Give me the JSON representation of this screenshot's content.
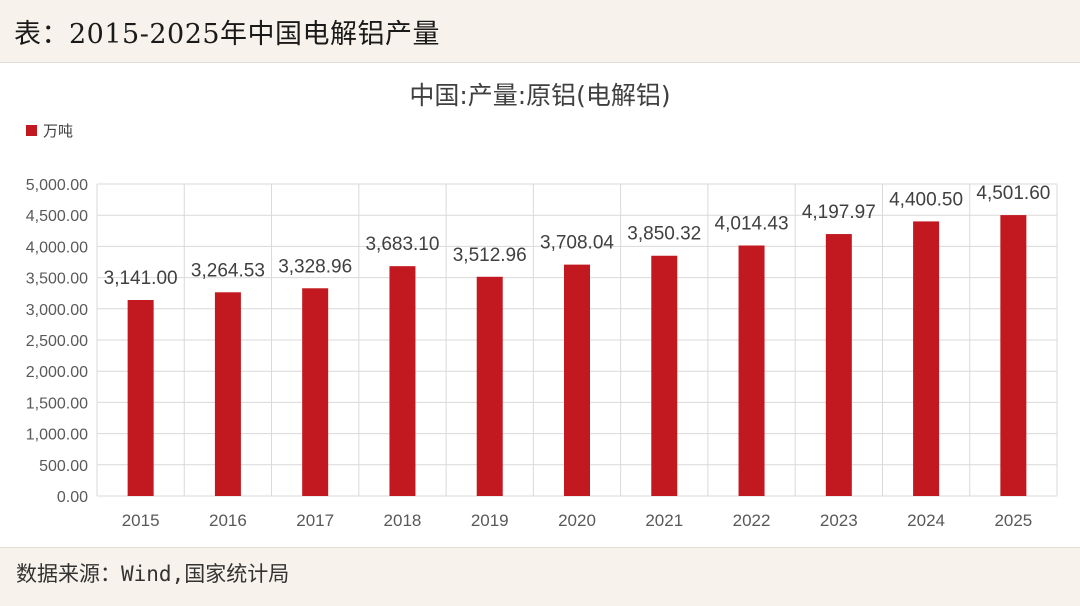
{
  "page": {
    "title": "表：2015-2025年中国电解铝产量",
    "source": "数据来源：Wind,国家统计局"
  },
  "chart_data": {
    "type": "bar",
    "title": "中国:产量:原铝(电解铝)",
    "unit": "万吨",
    "categories": [
      "2015",
      "2016",
      "2017",
      "2018",
      "2019",
      "2020",
      "2021",
      "2022",
      "2023",
      "2024",
      "2025"
    ],
    "series": [
      {
        "name": "万吨",
        "values": [
          3141.0,
          3264.53,
          3328.96,
          3683.1,
          3512.96,
          3708.04,
          3850.32,
          4014.43,
          4197.97,
          4400.5,
          4501.6
        ],
        "labels": [
          "3,141.00",
          "3,264.53",
          "3,328.96",
          "3,683.10",
          "3,512.96",
          "3,708.04",
          "3,850.32",
          "4,014.43",
          "4,197.97",
          "4,400.50",
          "4,501.60"
        ]
      }
    ],
    "y_ticks": [
      "0.00",
      "500.00",
      "1,000.00",
      "1,500.00",
      "2,000.00",
      "2,500.00",
      "3,000.00",
      "3,500.00",
      "4,000.00",
      "4,500.00",
      "5,000.00"
    ],
    "ylim": [
      0,
      5000
    ],
    "grid": true,
    "legend_position": "top-left",
    "bar_color": "#c1191f"
  }
}
